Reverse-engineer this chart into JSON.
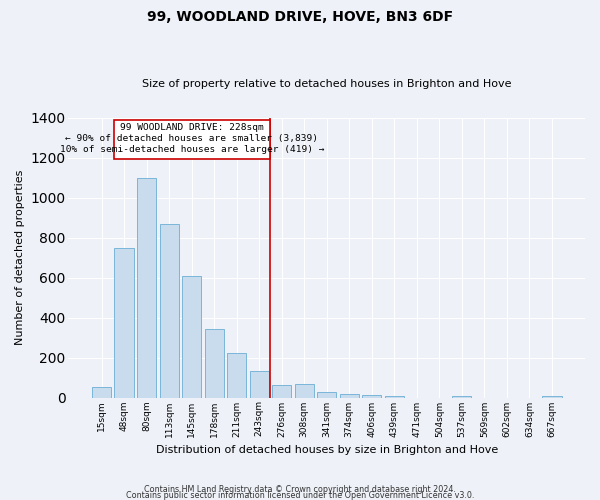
{
  "title": "99, WOODLAND DRIVE, HOVE, BN3 6DF",
  "subtitle": "Size of property relative to detached houses in Brighton and Hove",
  "xlabel": "Distribution of detached houses by size in Brighton and Hove",
  "ylabel": "Number of detached properties",
  "footer1": "Contains HM Land Registry data © Crown copyright and database right 2024.",
  "footer2": "Contains public sector information licensed under the Open Government Licence v3.0.",
  "categories": [
    "15sqm",
    "48sqm",
    "80sqm",
    "113sqm",
    "145sqm",
    "178sqm",
    "211sqm",
    "243sqm",
    "276sqm",
    "308sqm",
    "341sqm",
    "374sqm",
    "406sqm",
    "439sqm",
    "471sqm",
    "504sqm",
    "537sqm",
    "569sqm",
    "602sqm",
    "634sqm",
    "667sqm"
  ],
  "values": [
    55,
    750,
    1100,
    870,
    610,
    345,
    225,
    135,
    63,
    70,
    27,
    20,
    13,
    10,
    0,
    0,
    8,
    0,
    0,
    0,
    10
  ],
  "bar_color": "#c9dcee",
  "bar_edge_color": "#6aaed6",
  "vline_index": 7,
  "annotation_line1": "99 WOODLAND DRIVE: 228sqm",
  "annotation_line2": "← 90% of detached houses are smaller (3,839)",
  "annotation_line3": "10% of semi-detached houses are larger (419) →",
  "annotation_box_color": "#cc0000",
  "vline_color": "#cc0000",
  "ylim": [
    0,
    1400
  ],
  "yticks": [
    0,
    200,
    400,
    600,
    800,
    1000,
    1200,
    1400
  ],
  "background_color": "#eef2f8",
  "grid_color": "#ffffff",
  "figsize": [
    6.0,
    5.0
  ],
  "dpi": 100
}
